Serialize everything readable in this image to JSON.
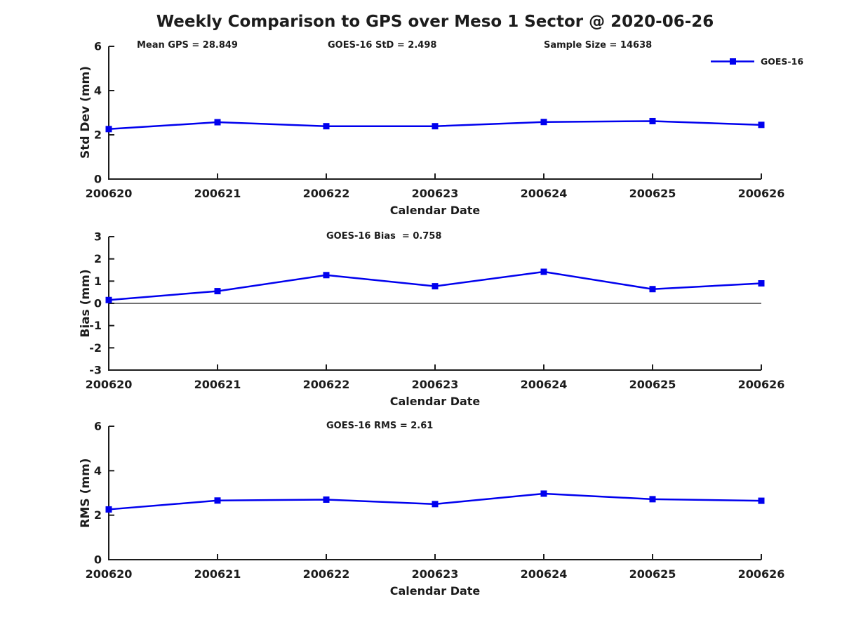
{
  "title": "Weekly Comparison to GPS over Meso 1 Sector @ 2020-06-26",
  "colors": {
    "line": "#0000ee",
    "axis": "#1c1c1c",
    "background": "#ffffff"
  },
  "legend": {
    "label": "GOES-16",
    "position": "top-right"
  },
  "chart_data": [
    {
      "type": "line",
      "ylabel": "Std Dev (mm)",
      "xlabel": "Calendar Date",
      "annotations": [
        "Mean GPS = 28.849",
        "GOES-16 StD = 2.498",
        "Sample Size = 14638"
      ],
      "categories": [
        "200620",
        "200621",
        "200622",
        "200623",
        "200624",
        "200625",
        "200626"
      ],
      "series": [
        {
          "name": "GOES-16",
          "values": [
            2.26,
            2.57,
            2.39,
            2.39,
            2.58,
            2.62,
            2.45
          ]
        }
      ],
      "ylim": [
        0,
        6
      ],
      "yticks": [
        0,
        2,
        4,
        6
      ],
      "zero_line": false,
      "grid": false,
      "marker": "square"
    },
    {
      "type": "line",
      "ylabel": "Bias (mm)",
      "xlabel": "Calendar Date",
      "annotations": [
        "GOES-16 Bias  = 0.758"
      ],
      "categories": [
        "200620",
        "200621",
        "200622",
        "200623",
        "200624",
        "200625",
        "200626"
      ],
      "series": [
        {
          "name": "GOES-16",
          "values": [
            0.15,
            0.55,
            1.27,
            0.77,
            1.42,
            0.64,
            0.9
          ]
        }
      ],
      "ylim": [
        -3,
        3
      ],
      "yticks": [
        -3,
        -2,
        -1,
        0,
        1,
        2,
        3
      ],
      "zero_line": true,
      "grid": false,
      "marker": "square"
    },
    {
      "type": "line",
      "ylabel": "RMS (mm)",
      "xlabel": "Calendar Date",
      "annotations": [
        "GOES-16 RMS = 2.61"
      ],
      "categories": [
        "200620",
        "200621",
        "200622",
        "200623",
        "200624",
        "200625",
        "200626"
      ],
      "series": [
        {
          "name": "GOES-16",
          "values": [
            2.26,
            2.66,
            2.7,
            2.5,
            2.97,
            2.72,
            2.65
          ]
        }
      ],
      "ylim": [
        0,
        6
      ],
      "yticks": [
        0,
        2,
        4,
        6
      ],
      "zero_line": false,
      "grid": false,
      "marker": "square"
    }
  ]
}
